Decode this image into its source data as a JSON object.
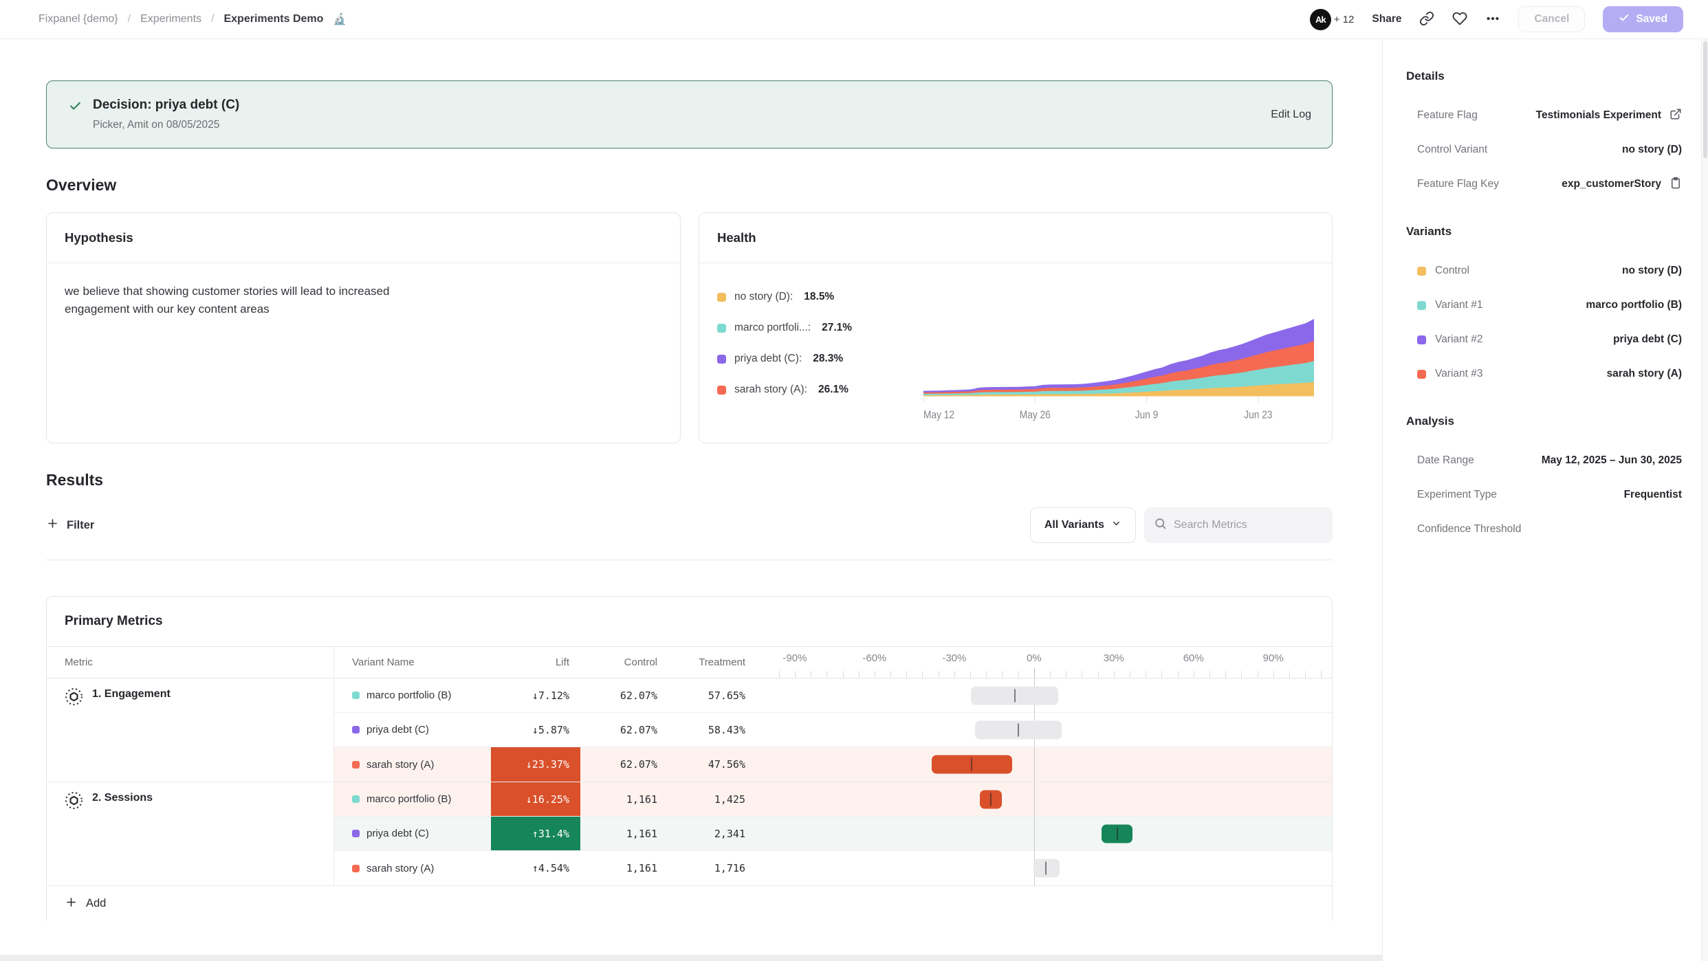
{
  "header": {
    "breadcrumb": {
      "items": [
        "Fixpanel {demo}",
        "Experiments",
        "Experiments Demo"
      ],
      "emoji": "🔬",
      "separator": "/"
    },
    "avatar": {
      "initials": "Ak",
      "overflow": "+ 12"
    },
    "share_label": "Share",
    "cancel_label": "Cancel",
    "saved_label": "Saved"
  },
  "decision": {
    "title": "Decision: priya debt (C)",
    "meta": "Picker, Amit on 08/05/2025",
    "edit_log_label": "Edit Log"
  },
  "overview": {
    "heading": "Overview",
    "hypothesis": {
      "title": "Hypothesis",
      "body": "we believe that showing customer stories will lead to increased engagement with our key content areas"
    },
    "health": {
      "title": "Health",
      "legend": [
        {
          "label": "no story (D):",
          "value": "18.5%",
          "color": "#F3BE5E"
        },
        {
          "label": "marco portfoli...:",
          "value": "27.1%",
          "color": "#7EDAD1"
        },
        {
          "label": "priya debt (C):",
          "value": "28.3%",
          "color": "#8A68E9"
        },
        {
          "label": "sarah story (A):",
          "value": "26.1%",
          "color": "#F46A52"
        }
      ]
    }
  },
  "results": {
    "heading": "Results",
    "filter_label": "Filter",
    "variant_filter_label": "All Variants",
    "search_placeholder": "Search Metrics"
  },
  "primary_metrics": {
    "title": "Primary Metrics",
    "columns": {
      "metric": "Metric",
      "variant": "Variant Name",
      "lift": "Lift",
      "control": "Control",
      "treatment": "Treatment"
    },
    "axis": {
      "min": -98,
      "max": 110,
      "tick_from": -96,
      "tick_to": 108,
      "tick_step": 6,
      "labels": [
        {
          "text": "-90%",
          "value": -90
        },
        {
          "text": "-60%",
          "value": -60
        },
        {
          "text": "-30%",
          "value": -30
        },
        {
          "text": "0%",
          "value": 0
        },
        {
          "text": "30%",
          "value": 30
        },
        {
          "text": "60%",
          "value": 60
        },
        {
          "text": "90%",
          "value": 90
        }
      ]
    },
    "groups": [
      {
        "metric": "1. Engagement",
        "rows": [
          {
            "variant": "marco portfolio (B)",
            "color": "#7EDAD1",
            "lift": "↓7.12%",
            "sig": "none",
            "control": "62.07%",
            "treatment": "57.65%",
            "ci_lo": -23.8,
            "ci_hi": 9.2,
            "ci_mark": -7.12,
            "row_bg": ""
          },
          {
            "variant": "priya debt (C)",
            "color": "#8A68E9",
            "lift": "↓5.87%",
            "sig": "none",
            "control": "62.07%",
            "treatment": "58.43%",
            "ci_lo": -22.2,
            "ci_hi": 10.5,
            "ci_mark": -5.87,
            "row_bg": ""
          },
          {
            "variant": "sarah story (A)",
            "color": "#F46A52",
            "lift": "↓23.37%",
            "sig": "negative",
            "control": "62.07%",
            "treatment": "47.56%",
            "ci_lo": -38.6,
            "ci_hi": -8.2,
            "ci_mark": -23.37,
            "row_bg": "pink"
          }
        ]
      },
      {
        "metric": "2. Sessions",
        "rows": [
          {
            "variant": "marco portfolio (B)",
            "color": "#7EDAD1",
            "lift": "↓16.25%",
            "sig": "negative",
            "control": "1,161",
            "treatment": "1,425",
            "ci_lo": -20.5,
            "ci_hi": -12.0,
            "ci_mark": -16.25,
            "row_bg": "pink"
          },
          {
            "variant": "priya debt (C)",
            "color": "#8A68E9",
            "lift": "↑31.4%",
            "sig": "positive",
            "control": "1,161",
            "treatment": "2,341",
            "ci_lo": 25.3,
            "ci_hi": 37.1,
            "ci_mark": 31.4,
            "row_bg": "mint"
          },
          {
            "variant": "sarah story (A)",
            "color": "#F46A52",
            "lift": "↑4.54%",
            "sig": "none",
            "control": "1,161",
            "treatment": "1,716",
            "ci_lo": -0.3,
            "ci_hi": 9.5,
            "ci_mark": 4.54,
            "row_bg": ""
          }
        ]
      }
    ],
    "add_label": "Add"
  },
  "sidebar": {
    "details": {
      "heading": "Details",
      "rows": [
        {
          "label": "Feature Flag",
          "value": "Testimonials Experiment"
        },
        {
          "label": "Control Variant",
          "value": "no story (D)"
        },
        {
          "label": "Feature Flag Key",
          "value": "exp_customerStory"
        }
      ]
    },
    "variants": {
      "heading": "Variants",
      "rows": [
        {
          "label": "Control",
          "value": "no story (D)",
          "color": "#F3BE5E"
        },
        {
          "label": "Variant #1",
          "value": "marco portfolio (B)",
          "color": "#7EDAD1"
        },
        {
          "label": "Variant #2",
          "value": "priya debt (C)",
          "color": "#8A68E9"
        },
        {
          "label": "Variant #3",
          "value": "sarah story (A)",
          "color": "#F46A52"
        }
      ]
    },
    "analysis": {
      "heading": "Analysis",
      "rows": [
        {
          "label": "Date Range",
          "value": "May 12, 2025 – Jun 30, 2025"
        },
        {
          "label": "Experiment Type",
          "value": "Frequentist"
        },
        {
          "label": "Confidence Threshold",
          "value": ""
        }
      ]
    }
  },
  "chart_data": [
    {
      "id": "health-exposures",
      "type": "area",
      "stacked": true,
      "title": "Health",
      "x_axis": {
        "tick_labels": [
          "May 12",
          "May 26",
          "Jun 9",
          "Jun 23"
        ],
        "tick_days": [
          0,
          14,
          28,
          42
        ],
        "total_days": 49,
        "start": "May 12",
        "end": "Jun 30"
      },
      "legend_values": {
        "no story (D)": "18.5%",
        "marco portfolio (B)": "27.1%",
        "priya debt (C)": "28.3%",
        "sarah story (A)": "26.1%"
      },
      "series": [
        {
          "name": "no story (D)",
          "share": 0.185,
          "color": "#F3BE5E"
        },
        {
          "name": "marco portfolio (B)",
          "share": 0.271,
          "color": "#7EDAD1"
        },
        {
          "name": "sarah story (A)",
          "share": 0.261,
          "color": "#F46A52"
        },
        {
          "name": "priya debt (C)",
          "share": 0.283,
          "color": "#8A68E9"
        }
      ],
      "totals": [
        0.07,
        0.072,
        0.074,
        0.077,
        0.08,
        0.085,
        0.09,
        0.112,
        0.118,
        0.12,
        0.12,
        0.121,
        0.122,
        0.126,
        0.13,
        0.148,
        0.152,
        0.153,
        0.154,
        0.156,
        0.16,
        0.17,
        0.182,
        0.195,
        0.21,
        0.235,
        0.26,
        0.29,
        0.32,
        0.35,
        0.375,
        0.415,
        0.445,
        0.465,
        0.495,
        0.525,
        0.565,
        0.595,
        0.615,
        0.645,
        0.675,
        0.715,
        0.755,
        0.795,
        0.825,
        0.855,
        0.885,
        0.915,
        0.945,
        1.0
      ]
    },
    {
      "id": "lift-confidence-intervals",
      "type": "range-bar",
      "x_range": [
        -98,
        110
      ],
      "axis_labels_pct": [
        -90,
        -60,
        -30,
        0,
        30,
        60,
        90
      ],
      "rows": [
        {
          "metric": "1. Engagement",
          "variant": "marco portfolio (B)",
          "lift_pct": -7.12,
          "ci": [
            -23.8,
            9.2
          ],
          "significant": false
        },
        {
          "metric": "1. Engagement",
          "variant": "priya debt (C)",
          "lift_pct": -5.87,
          "ci": [
            -22.2,
            10.5
          ],
          "significant": false
        },
        {
          "metric": "1. Engagement",
          "variant": "sarah story (A)",
          "lift_pct": -23.37,
          "ci": [
            -38.6,
            -8.2
          ],
          "significant": true
        },
        {
          "metric": "2. Sessions",
          "variant": "marco portfolio (B)",
          "lift_pct": -16.25,
          "ci": [
            -20.5,
            -12.0
          ],
          "significant": true
        },
        {
          "metric": "2. Sessions",
          "variant": "priya debt (C)",
          "lift_pct": 31.4,
          "ci": [
            25.3,
            37.1
          ],
          "significant": true
        },
        {
          "metric": "2. Sessions",
          "variant": "sarah story (A)",
          "lift_pct": 4.54,
          "ci": [
            -0.3,
            9.5
          ],
          "significant": false
        }
      ]
    }
  ]
}
